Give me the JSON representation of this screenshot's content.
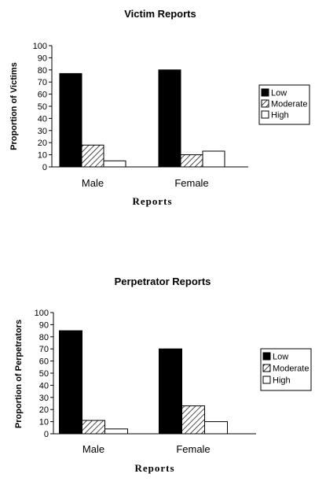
{
  "chart_data": [
    {
      "type": "bar",
      "title": "Victim Reports",
      "xlabel": "Reports",
      "ylabel": "Proportion of Victims",
      "ylim": [
        0,
        100
      ],
      "yticks": [
        "0",
        "10",
        "20",
        "30",
        "40",
        "50",
        "60",
        "70",
        "80",
        "90",
        "100"
      ],
      "categories": [
        "Male",
        "Female"
      ],
      "series": [
        {
          "name": "Low",
          "values": [
            77,
            80
          ]
        },
        {
          "name": "Moderate",
          "values": [
            18,
            10
          ]
        },
        {
          "name": "High",
          "values": [
            5,
            13
          ]
        }
      ],
      "legend_position": "right",
      "grid": false
    },
    {
      "type": "bar",
      "title": "Perpetrator Reports",
      "xlabel": "Reports",
      "ylabel": "Proportion of Perpetrators",
      "ylim": [
        0,
        100
      ],
      "yticks": [
        "0",
        "10",
        "20",
        "30",
        "40",
        "50",
        "60",
        "70",
        "80",
        "90",
        "100"
      ],
      "categories": [
        "Male",
        "Female"
      ],
      "series": [
        {
          "name": "Low",
          "values": [
            85,
            70
          ]
        },
        {
          "name": "Moderate",
          "values": [
            11,
            23
          ]
        },
        {
          "name": "High",
          "values": [
            4,
            10
          ]
        }
      ],
      "legend_position": "right",
      "grid": false
    }
  ]
}
